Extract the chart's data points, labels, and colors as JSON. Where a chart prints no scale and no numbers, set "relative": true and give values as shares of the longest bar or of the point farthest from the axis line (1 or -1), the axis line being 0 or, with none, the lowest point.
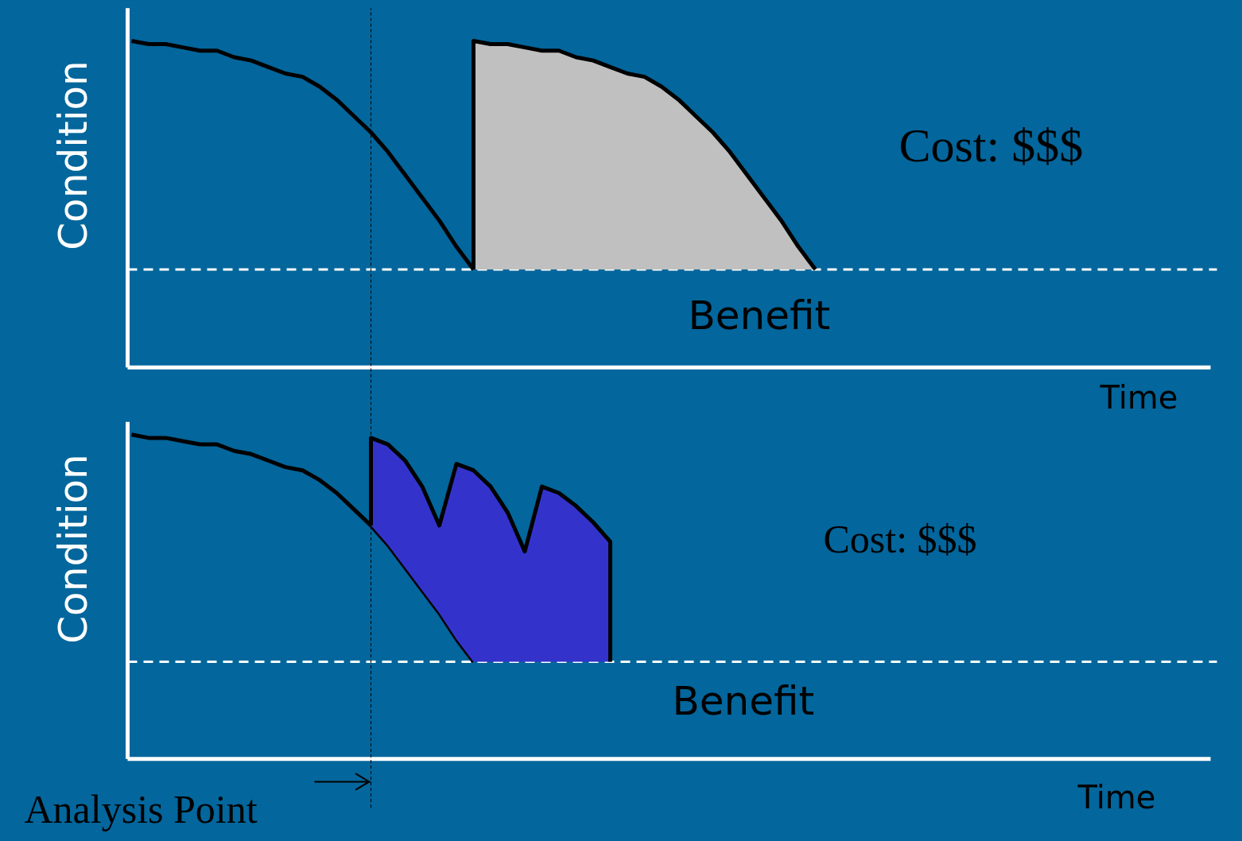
{
  "chart_data": [
    {
      "type": "line",
      "relative": true,
      "ylabel": "Condition",
      "xlabel": "Time",
      "categories": [
        null,
        null,
        null,
        null,
        null,
        null,
        null,
        null,
        null,
        null,
        null,
        null,
        null,
        null,
        null,
        null,
        null,
        null,
        null,
        null,
        null,
        null,
        null,
        null,
        null,
        null,
        null,
        null,
        null,
        null,
        null,
        null,
        null,
        null,
        null,
        null,
        null,
        null,
        null,
        null,
        null,
        null,
        null,
        null,
        null,
        null,
        null,
        null,
        null,
        null,
        null,
        null,
        null,
        null,
        null,
        null,
        null,
        null,
        null,
        null,
        null,
        null,
        null,
        null
      ],
      "series": [
        {
          "color": "#000000",
          "values": [
            1.0,
            0.99,
            0.99,
            0.98,
            0.97,
            0.97,
            0.95,
            0.94,
            0.92,
            0.9,
            0.89,
            0.86,
            0.82,
            0.77,
            0.72,
            0.66,
            0.59,
            0.52,
            0.45,
            0.37,
            0.3,
            null,
            null,
            null,
            null,
            null,
            null,
            null,
            null,
            null,
            null,
            null,
            null,
            null,
            null,
            null,
            null,
            null,
            null,
            null,
            null,
            null,
            null,
            null,
            null,
            null,
            null,
            null,
            null,
            null,
            null,
            null,
            null,
            null,
            null,
            null,
            null,
            null,
            null,
            null,
            null,
            null,
            null,
            null
          ]
        },
        {
          "type": "area",
          "color": "#c0c0c0",
          "values": [
            null,
            null,
            null,
            null,
            null,
            null,
            null,
            null,
            null,
            null,
            null,
            null,
            null,
            null,
            null,
            null,
            null,
            null,
            null,
            null,
            1.0,
            0.99,
            0.99,
            0.98,
            0.97,
            0.97,
            0.95,
            0.94,
            0.92,
            0.9,
            0.89,
            0.86,
            0.82,
            0.77,
            0.72,
            0.66,
            0.59,
            0.52,
            0.45,
            0.37,
            0.3,
            null,
            null,
            null,
            null,
            null,
            null,
            null,
            null,
            null,
            null,
            null,
            null,
            null,
            null,
            null,
            null,
            null,
            null,
            null,
            null,
            null,
            null,
            null
          ]
        }
      ],
      "ref_lines": [
        {
          "axis": "y",
          "value": 0.3,
          "color": "#ffffff",
          "line_style": "dashed"
        }
      ],
      "annotations": [
        "Cost: $$$",
        "Benefit"
      ]
    },
    {
      "type": "line",
      "relative": true,
      "ylabel": "Condition",
      "xlabel": "Time",
      "categories": [
        null,
        null,
        null,
        null,
        null,
        null,
        null,
        null,
        null,
        null,
        null,
        null,
        null,
        null,
        null,
        null,
        null,
        null,
        null,
        null,
        null,
        null,
        null,
        null,
        null,
        null,
        null,
        null,
        null,
        null,
        null,
        null,
        null,
        null,
        null,
        null,
        null,
        null,
        null,
        null,
        null,
        null,
        null,
        null,
        null,
        null,
        null,
        null,
        null,
        null,
        null,
        null,
        null,
        null,
        null,
        null,
        null,
        null,
        null,
        null,
        null,
        null,
        null,
        null
      ],
      "series": [
        {
          "color": "#000000",
          "values": [
            1.0,
            0.99,
            0.99,
            0.98,
            0.97,
            0.97,
            0.95,
            0.94,
            0.92,
            0.9,
            0.89,
            0.86,
            0.82,
            0.77,
            0.72,
            0.66,
            0.59,
            0.52,
            0.45,
            0.37,
            0.3,
            null,
            null,
            null,
            null,
            null,
            null,
            null,
            null,
            null,
            null,
            null,
            null,
            null,
            null,
            null,
            null,
            null,
            null,
            null,
            null,
            null,
            null,
            null,
            null,
            null,
            null,
            null,
            null,
            null,
            null,
            null,
            null,
            null,
            null,
            null,
            null,
            null,
            null,
            null,
            null,
            null,
            null,
            null
          ]
        },
        {
          "type": "area",
          "color": "#3333cc",
          "values": [
            null,
            null,
            null,
            null,
            null,
            null,
            null,
            null,
            null,
            null,
            null,
            null,
            null,
            null,
            0.99,
            0.97,
            0.92,
            0.84,
            0.72,
            0.91,
            0.89,
            0.84,
            0.76,
            0.64,
            0.84,
            0.82,
            0.78,
            0.73,
            0.67,
            null,
            null,
            null,
            null,
            null,
            null,
            null,
            null,
            null,
            null,
            null,
            null,
            null,
            null,
            null,
            null,
            null,
            null,
            null,
            null,
            null,
            null,
            null,
            null,
            null,
            null,
            null,
            null,
            null,
            null,
            null,
            null,
            null,
            null,
            null
          ]
        }
      ],
      "ref_lines": [
        {
          "axis": "y",
          "value": 0.3,
          "color": "#ffffff",
          "line_style": "dashed"
        }
      ],
      "annotations": [
        "Cost: $$$",
        "Benefit",
        "Analysis Point"
      ]
    }
  ]
}
